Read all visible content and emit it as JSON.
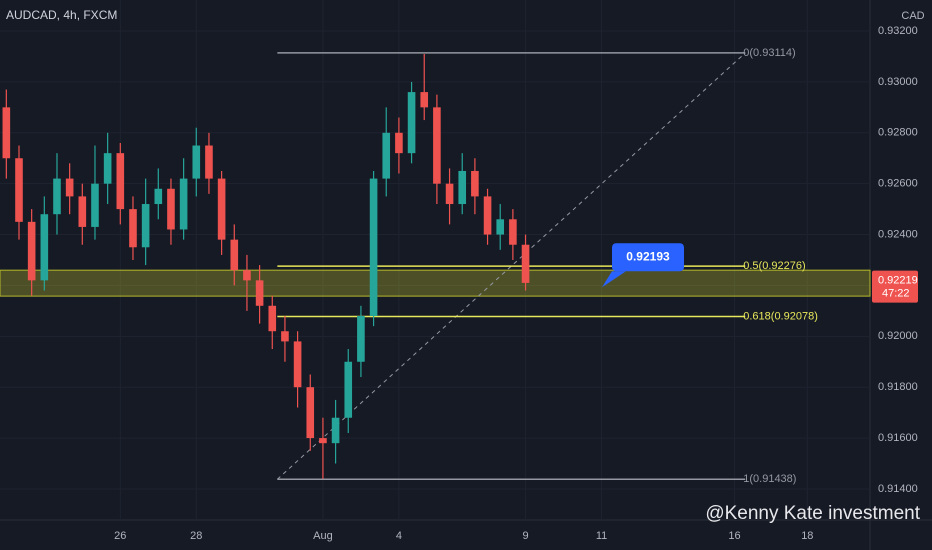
{
  "chart_data": {
    "type": "candlestick",
    "title": "AUDCAD, 4h, FXCM",
    "currency": "CAD",
    "up_color": "#26a69a",
    "down_color": "#ef5350",
    "x": [
      0,
      2,
      4,
      6,
      8,
      10,
      12,
      14,
      16,
      18,
      20,
      22,
      24,
      26,
      28,
      30,
      32,
      34,
      36,
      38,
      40,
      42,
      44,
      46,
      48,
      50,
      52,
      54,
      56,
      58,
      60,
      62,
      64,
      66,
      68,
      70,
      72,
      74,
      76,
      78,
      80,
      82
    ],
    "open": [
      0.929,
      0.927,
      0.9245,
      0.9222,
      0.9248,
      0.9262,
      0.9255,
      0.9243,
      0.926,
      0.9272,
      0.925,
      0.9235,
      0.9252,
      0.9258,
      0.9242,
      0.9262,
      0.9275,
      0.9262,
      0.9238,
      0.9226,
      0.9222,
      0.9212,
      0.9202,
      0.9198,
      0.918,
      0.916,
      0.9158,
      0.9168,
      0.919,
      0.9208,
      0.9262,
      0.928,
      0.9272,
      0.9296,
      0.929,
      0.926,
      0.9252,
      0.9265,
      0.9255,
      0.924,
      0.9246,
      0.9236
    ],
    "high": [
      0.9297,
      0.9275,
      0.925,
      0.9255,
      0.9272,
      0.9268,
      0.926,
      0.9275,
      0.928,
      0.9276,
      0.9255,
      0.9262,
      0.9266,
      0.9262,
      0.927,
      0.9282,
      0.928,
      0.9265,
      0.9244,
      0.9232,
      0.9228,
      0.9216,
      0.9208,
      0.9202,
      0.9185,
      0.9168,
      0.9175,
      0.9195,
      0.9212,
      0.9265,
      0.929,
      0.9286,
      0.93,
      0.9311,
      0.9295,
      0.9266,
      0.9272,
      0.927,
      0.9258,
      0.9252,
      0.925,
      0.924
    ],
    "low": [
      0.9262,
      0.9238,
      0.9216,
      0.9218,
      0.924,
      0.9248,
      0.9236,
      0.9238,
      0.9252,
      0.9244,
      0.923,
      0.9228,
      0.9246,
      0.9236,
      0.9238,
      0.9255,
      0.9256,
      0.9232,
      0.922,
      0.921,
      0.9205,
      0.9195,
      0.919,
      0.9172,
      0.9155,
      0.9144,
      0.915,
      0.9162,
      0.9184,
      0.9204,
      0.9255,
      0.9264,
      0.9268,
      0.9285,
      0.9252,
      0.9244,
      0.9248,
      0.9248,
      0.9236,
      0.9234,
      0.923,
      0.9218
    ],
    "close": [
      0.927,
      0.9245,
      0.9222,
      0.9248,
      0.9262,
      0.9255,
      0.9243,
      0.926,
      0.9272,
      0.925,
      0.9235,
      0.9252,
      0.9258,
      0.9242,
      0.9262,
      0.9275,
      0.9262,
      0.9238,
      0.9226,
      0.9222,
      0.9212,
      0.9202,
      0.9198,
      0.918,
      0.916,
      0.9158,
      0.9168,
      0.919,
      0.9208,
      0.9262,
      0.928,
      0.9272,
      0.9296,
      0.929,
      0.926,
      0.9252,
      0.9265,
      0.9255,
      0.924,
      0.9246,
      0.9236,
      0.9221
    ],
    "xlim": [
      -1,
      136.4
    ],
    "xticks": [
      {
        "value": 18,
        "label": "26"
      },
      {
        "value": 30,
        "label": "28"
      },
      {
        "value": 50,
        "label": "Aug"
      },
      {
        "value": 62,
        "label": "4"
      },
      {
        "value": 82,
        "label": "9"
      },
      {
        "value": 94,
        "label": "11"
      },
      {
        "value": 115,
        "label": "16"
      },
      {
        "value": 126.5,
        "label": "18"
      }
    ],
    "ylim": [
      0.91278,
      0.93322
    ],
    "yticks": [
      {
        "value": 0.914,
        "label": "0.91400"
      },
      {
        "value": 0.916,
        "label": "0.91600"
      },
      {
        "value": 0.918,
        "label": "0.91800"
      },
      {
        "value": 0.92,
        "label": "0.92000"
      },
      {
        "value": 0.922,
        "label": "0.92200"
      },
      {
        "value": 0.924,
        "label": "0.92400"
      },
      {
        "value": 0.926,
        "label": "0.92600"
      },
      {
        "value": 0.928,
        "label": "0.92800"
      },
      {
        "value": 0.93,
        "label": "0.93000"
      },
      {
        "value": 0.932,
        "label": "0.93200"
      }
    ],
    "grid": true,
    "zone": {
      "low": 0.92158,
      "high": 0.9226,
      "color": "#b5b82a"
    },
    "fib": {
      "start_x": 42.8,
      "end_x": 116.7,
      "levels": [
        {
          "label": "0(0.93114)",
          "value": 0.93114,
          "color": "#9598a1"
        },
        {
          "label": "0.5(0.92276)",
          "value": 0.92276,
          "color": "#e8e85a"
        },
        {
          "label": "0.618(0.92078)",
          "value": 0.92078,
          "color": "#e8e85a"
        },
        {
          "label": "1(0.91438)",
          "value": 0.91438,
          "color": "#9598a1"
        }
      ]
    },
    "marker": 0.92193,
    "last_price": 0.92219,
    "countdown": "47:22",
    "watermark": "@Kenny Kate investment"
  }
}
